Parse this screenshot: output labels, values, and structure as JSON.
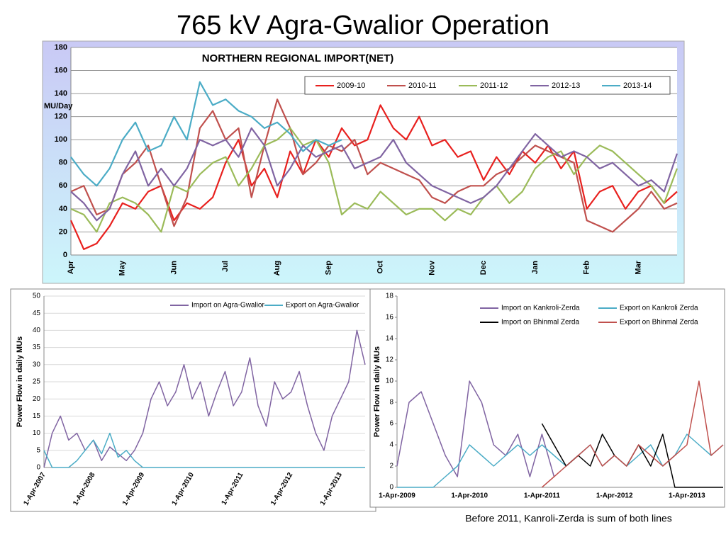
{
  "title": "765 kV Agra-Gwalior Operation",
  "note": "Before 2011, Kanroli-Zerda is sum of both lines",
  "chart_data": [
    {
      "type": "line",
      "title": "NORTHERN REGIONAL IMPORT(NET)",
      "y_label": "MU/Day",
      "categories": [
        "Apr",
        null,
        null,
        null,
        "May",
        null,
        null,
        null,
        "Jun",
        null,
        null,
        null,
        "Jul",
        null,
        null,
        null,
        "Aug",
        null,
        null,
        null,
        "Sep",
        null,
        null,
        null,
        "Oct",
        null,
        null,
        null,
        "Nov",
        null,
        null,
        null,
        "Dec",
        null,
        null,
        null,
        "Jan",
        null,
        null,
        null,
        "Feb",
        null,
        null,
        null,
        "Mar",
        null,
        null,
        null
      ],
      "ylim": [
        0,
        180
      ],
      "yticks": [
        0,
        20,
        40,
        60,
        80,
        100,
        120,
        140,
        160,
        180
      ],
      "grid": true,
      "series": [
        {
          "name": "2009-10",
          "color": "#e8201e",
          "values": [
            30,
            5,
            10,
            25,
            45,
            40,
            55,
            60,
            30,
            45,
            40,
            50,
            80,
            100,
            60,
            75,
            50,
            90,
            70,
            100,
            85,
            110,
            95,
            100,
            130,
            110,
            100,
            120,
            95,
            100,
            85,
            90,
            65,
            85,
            70,
            90,
            80,
            95,
            75,
            90,
            40,
            55,
            60,
            40,
            55,
            60,
            45,
            55
          ]
        },
        {
          "name": "2010-11",
          "color": "#c0504d",
          "values": [
            55,
            60,
            35,
            40,
            70,
            80,
            95,
            60,
            25,
            50,
            110,
            125,
            100,
            110,
            50,
            95,
            135,
            110,
            70,
            80,
            95,
            90,
            100,
            70,
            80,
            75,
            70,
            65,
            50,
            45,
            55,
            60,
            60,
            70,
            75,
            85,
            95,
            90,
            85,
            80,
            30,
            25,
            20,
            30,
            40,
            55,
            40,
            45
          ]
        },
        {
          "name": "2011-12",
          "color": "#9bbb59",
          "values": [
            40,
            35,
            20,
            45,
            50,
            45,
            35,
            20,
            60,
            55,
            70,
            80,
            85,
            60,
            75,
            95,
            100,
            110,
            95,
            100,
            80,
            35,
            45,
            40,
            55,
            45,
            35,
            40,
            40,
            30,
            40,
            35,
            50,
            60,
            45,
            55,
            75,
            85,
            90,
            70,
            85,
            95,
            90,
            80,
            70,
            60,
            45,
            75
          ]
        },
        {
          "name": "2012-13",
          "color": "#8064a2",
          "values": [
            55,
            45,
            30,
            40,
            70,
            90,
            60,
            75,
            60,
            75,
            100,
            95,
            100,
            85,
            110,
            95,
            60,
            75,
            95,
            85,
            90,
            95,
            75,
            80,
            85,
            100,
            80,
            70,
            60,
            55,
            50,
            45,
            50,
            60,
            75,
            90,
            105,
            95,
            85,
            90,
            85,
            75,
            80,
            70,
            60,
            65,
            55,
            88
          ]
        },
        {
          "name": "2013-14",
          "color": "#4bacc6",
          "values": [
            85,
            70,
            60,
            75,
            100,
            115,
            90,
            95,
            120,
            100,
            150,
            130,
            135,
            125,
            120,
            110,
            115,
            105,
            90,
            100,
            95,
            100,
            null,
            null,
            null,
            null,
            null,
            null,
            null,
            null,
            null,
            null,
            null,
            null,
            null,
            null,
            null,
            null,
            null,
            null,
            null,
            null,
            null,
            null,
            null,
            null,
            null,
            null
          ]
        }
      ]
    },
    {
      "type": "line",
      "y_label": "Power Flow in daily MUs",
      "categories": [
        "1-Apr-2007",
        null,
        null,
        null,
        null,
        null,
        "1-Apr-2008",
        null,
        null,
        null,
        null,
        null,
        "1-Apr-2009",
        null,
        null,
        null,
        null,
        null,
        "1-Apr-2010",
        null,
        null,
        null,
        null,
        null,
        "1-Apr-2011",
        null,
        null,
        null,
        null,
        null,
        "1-Apr-2012",
        null,
        null,
        null,
        null,
        null,
        "1-Apr-2013",
        null,
        null,
        null
      ],
      "ylim": [
        0,
        50
      ],
      "yticks": [
        0,
        5,
        10,
        15,
        20,
        25,
        30,
        35,
        40,
        45,
        50
      ],
      "grid": true,
      "series": [
        {
          "name": "Import on Agra-Gwalior",
          "color": "#8064a2",
          "values": [
            0,
            10,
            15,
            8,
            10,
            5,
            8,
            2,
            6,
            4,
            2,
            5,
            10,
            20,
            25,
            18,
            22,
            30,
            20,
            25,
            15,
            22,
            28,
            18,
            22,
            32,
            18,
            12,
            25,
            20,
            22,
            28,
            18,
            10,
            5,
            15,
            20,
            25,
            40,
            30
          ]
        },
        {
          "name": "Export on Agra-Gwalior",
          "color": "#4bacc6",
          "values": [
            5,
            0,
            0,
            0,
            2,
            5,
            8,
            4,
            10,
            3,
            5,
            2,
            0,
            0,
            0,
            0,
            0,
            0,
            0,
            0,
            0,
            0,
            0,
            0,
            0,
            0,
            0,
            0,
            0,
            0,
            0,
            0,
            0,
            0,
            0,
            0,
            0,
            0,
            0,
            0
          ]
        }
      ]
    },
    {
      "type": "line",
      "y_label": "Power Flow in daily MUs",
      "categories": [
        "1-Apr-2009",
        null,
        null,
        null,
        null,
        null,
        "1-Apr-2010",
        null,
        null,
        null,
        null,
        null,
        "1-Apr-2011",
        null,
        null,
        null,
        null,
        null,
        "1-Apr-2012",
        null,
        null,
        null,
        null,
        null,
        "1-Apr-2013",
        null,
        null,
        null
      ],
      "ylim": [
        0,
        18
      ],
      "yticks": [
        0,
        2,
        4,
        6,
        8,
        10,
        12,
        14,
        16,
        18
      ],
      "grid": false,
      "series": [
        {
          "name": "Import on Kankroli-Zerda",
          "color": "#8064a2",
          "values": [
            2,
            8,
            9,
            6,
            3,
            1,
            10,
            8,
            4,
            3,
            5,
            1,
            5,
            1,
            null,
            null,
            null,
            null,
            null,
            null,
            null,
            null,
            null,
            null,
            null,
            null,
            null,
            null
          ]
        },
        {
          "name": "Export on Kankroli Zerda",
          "color": "#4bacc6",
          "values": [
            0,
            0,
            0,
            0,
            1,
            2,
            4,
            3,
            2,
            3,
            4,
            3,
            4,
            3,
            2,
            3,
            4,
            2,
            3,
            2,
            3,
            4,
            2,
            3,
            5,
            4,
            3,
            4
          ]
        },
        {
          "name": "Import on Bhinmal Zerda",
          "color": "#000000",
          "values": [
            null,
            null,
            null,
            null,
            null,
            null,
            null,
            null,
            null,
            null,
            null,
            null,
            6,
            4,
            2,
            3,
            2,
            5,
            3,
            2,
            4,
            2,
            5,
            0,
            0,
            0,
            0,
            0
          ]
        },
        {
          "name": "Export on Bhinmal Zerda",
          "color": "#c0504d",
          "values": [
            null,
            null,
            null,
            null,
            null,
            null,
            null,
            null,
            null,
            null,
            null,
            null,
            0,
            1,
            2,
            3,
            4,
            2,
            3,
            2,
            4,
            3,
            2,
            3,
            4,
            10,
            3,
            4
          ]
        }
      ]
    }
  ]
}
